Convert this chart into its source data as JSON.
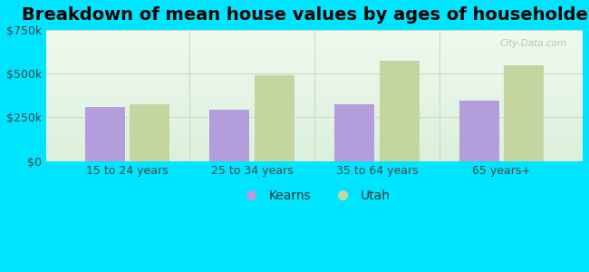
{
  "title": "Breakdown of mean house values by ages of householders",
  "categories": [
    "15 to 24 years",
    "25 to 34 years",
    "35 to 64 years",
    "65 years+"
  ],
  "kearns_values": [
    310000,
    295000,
    325000,
    345000
  ],
  "utah_values": [
    325000,
    490000,
    575000,
    550000
  ],
  "kearns_color": "#b39ddb",
  "utah_color": "#c5d5a0",
  "background_color": "#00e5ff",
  "plot_bg_top_left": "#deeede",
  "plot_bg_top_right": "#f0f8f0",
  "plot_bg_bottom_left": "#e8f5e0",
  "plot_bg_bottom_right": "#fafff8",
  "grid_color": "#d0d8c8",
  "ylim": [
    0,
    750000
  ],
  "yticks": [
    0,
    250000,
    500000,
    750000
  ],
  "ytick_labels": [
    "$0",
    "$250k",
    "$500k",
    "$750k"
  ],
  "title_fontsize": 14,
  "tick_fontsize": 9,
  "legend_fontsize": 10,
  "bar_width": 0.32,
  "watermark": "City-Data.com"
}
